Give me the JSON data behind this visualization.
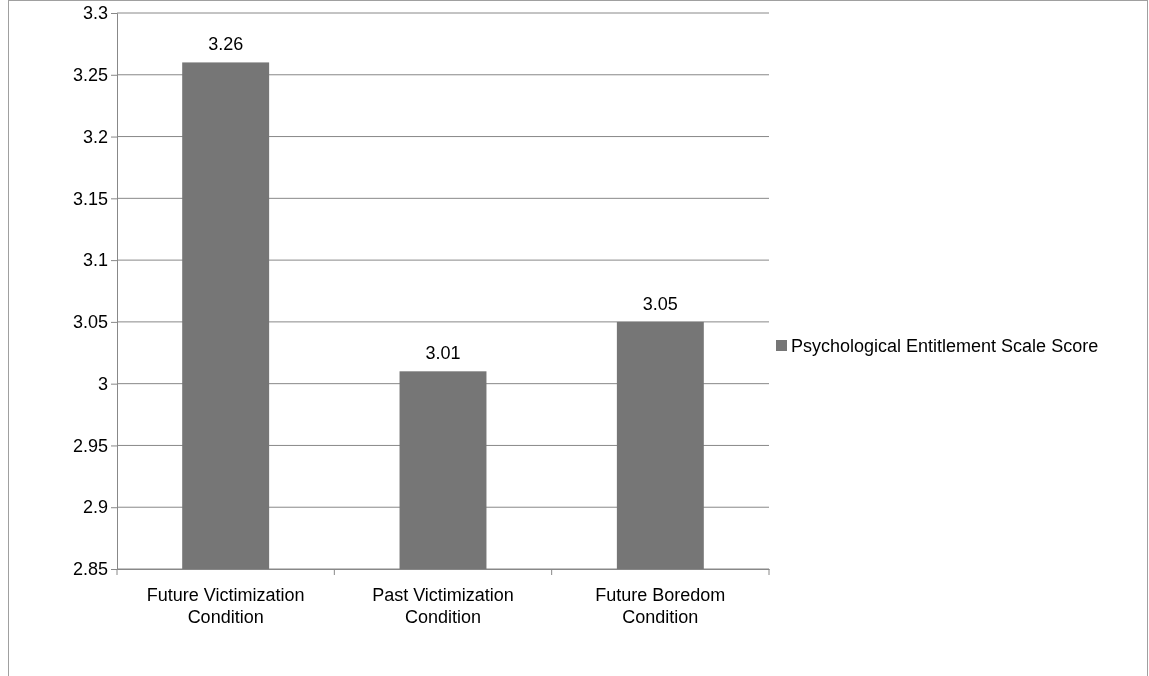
{
  "chart_data": {
    "type": "bar",
    "categories": [
      "Future Victimization Condition",
      "Past Victimization Condition",
      "Future Boredom Condition"
    ],
    "series": [
      {
        "name": "Psychological Entitlement Scale Score",
        "color": "#767676",
        "values": [
          3.26,
          3.01,
          3.05
        ]
      }
    ],
    "ylim": [
      2.85,
      3.3
    ],
    "yticks": [
      2.85,
      2.9,
      2.95,
      3,
      3.05,
      3.1,
      3.15,
      3.2,
      3.25,
      3.3
    ],
    "grid": "y",
    "legend": "right",
    "data_labels": true
  }
}
